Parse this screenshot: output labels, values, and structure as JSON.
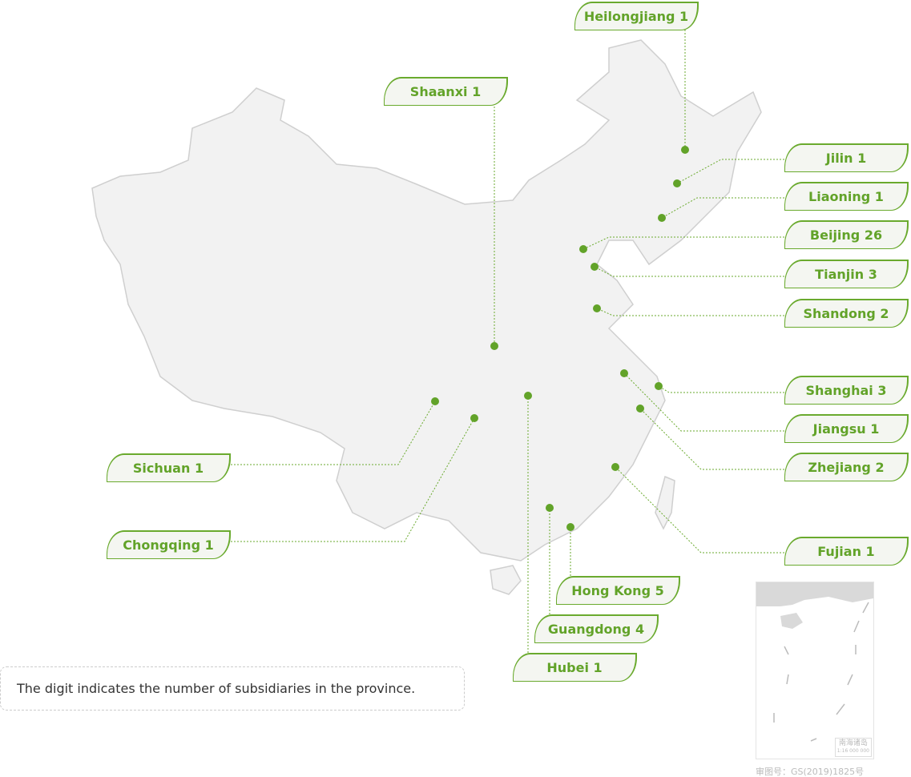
{
  "colors": {
    "accent": "#6aaa2e",
    "land": "#f2f2f2",
    "border": "#cfcfcf"
  },
  "labels": [
    {
      "id": "heilongjiang",
      "text": "Heilongjiang 1",
      "province": "Heilongjiang",
      "count": 1
    },
    {
      "id": "shaanxi",
      "text": "Shaanxi 1",
      "province": "Shaanxi",
      "count": 1
    },
    {
      "id": "jilin",
      "text": "Jilin 1",
      "province": "Jilin",
      "count": 1
    },
    {
      "id": "liaoning",
      "text": "Liaoning 1",
      "province": "Liaoning",
      "count": 1
    },
    {
      "id": "beijing",
      "text": "Beijing 26",
      "province": "Beijing",
      "count": 26
    },
    {
      "id": "tianjin",
      "text": "Tianjin 3",
      "province": "Tianjin",
      "count": 3
    },
    {
      "id": "shandong",
      "text": "Shandong 2",
      "province": "Shandong",
      "count": 2
    },
    {
      "id": "shanghai",
      "text": "Shanghai 3",
      "province": "Shanghai",
      "count": 3
    },
    {
      "id": "jiangsu",
      "text": "Jiangsu 1",
      "province": "Jiangsu",
      "count": 1
    },
    {
      "id": "zhejiang",
      "text": "Zhejiang 2",
      "province": "Zhejiang",
      "count": 2
    },
    {
      "id": "fujian",
      "text": "Fujian 1",
      "province": "Fujian",
      "count": 1
    },
    {
      "id": "hongkong",
      "text": "Hong Kong 5",
      "province": "Hong Kong",
      "count": 5
    },
    {
      "id": "guangdong",
      "text": "Guangdong 4",
      "province": "Guangdong",
      "count": 4
    },
    {
      "id": "hubei",
      "text": "Hubei 1",
      "province": "Hubei",
      "count": 1
    },
    {
      "id": "sichuan",
      "text": "Sichuan 1",
      "province": "Sichuan",
      "count": 1
    },
    {
      "id": "chongqing",
      "text": "Chongqing 1",
      "province": "Chongqing",
      "count": 1
    }
  ],
  "note": "The digit indicates the number of subsidiaries in the province.",
  "inset": {
    "title": "南海诸岛",
    "scale": "1:16 000 000"
  },
  "approval": "审图号：GS(2019)1825号"
}
